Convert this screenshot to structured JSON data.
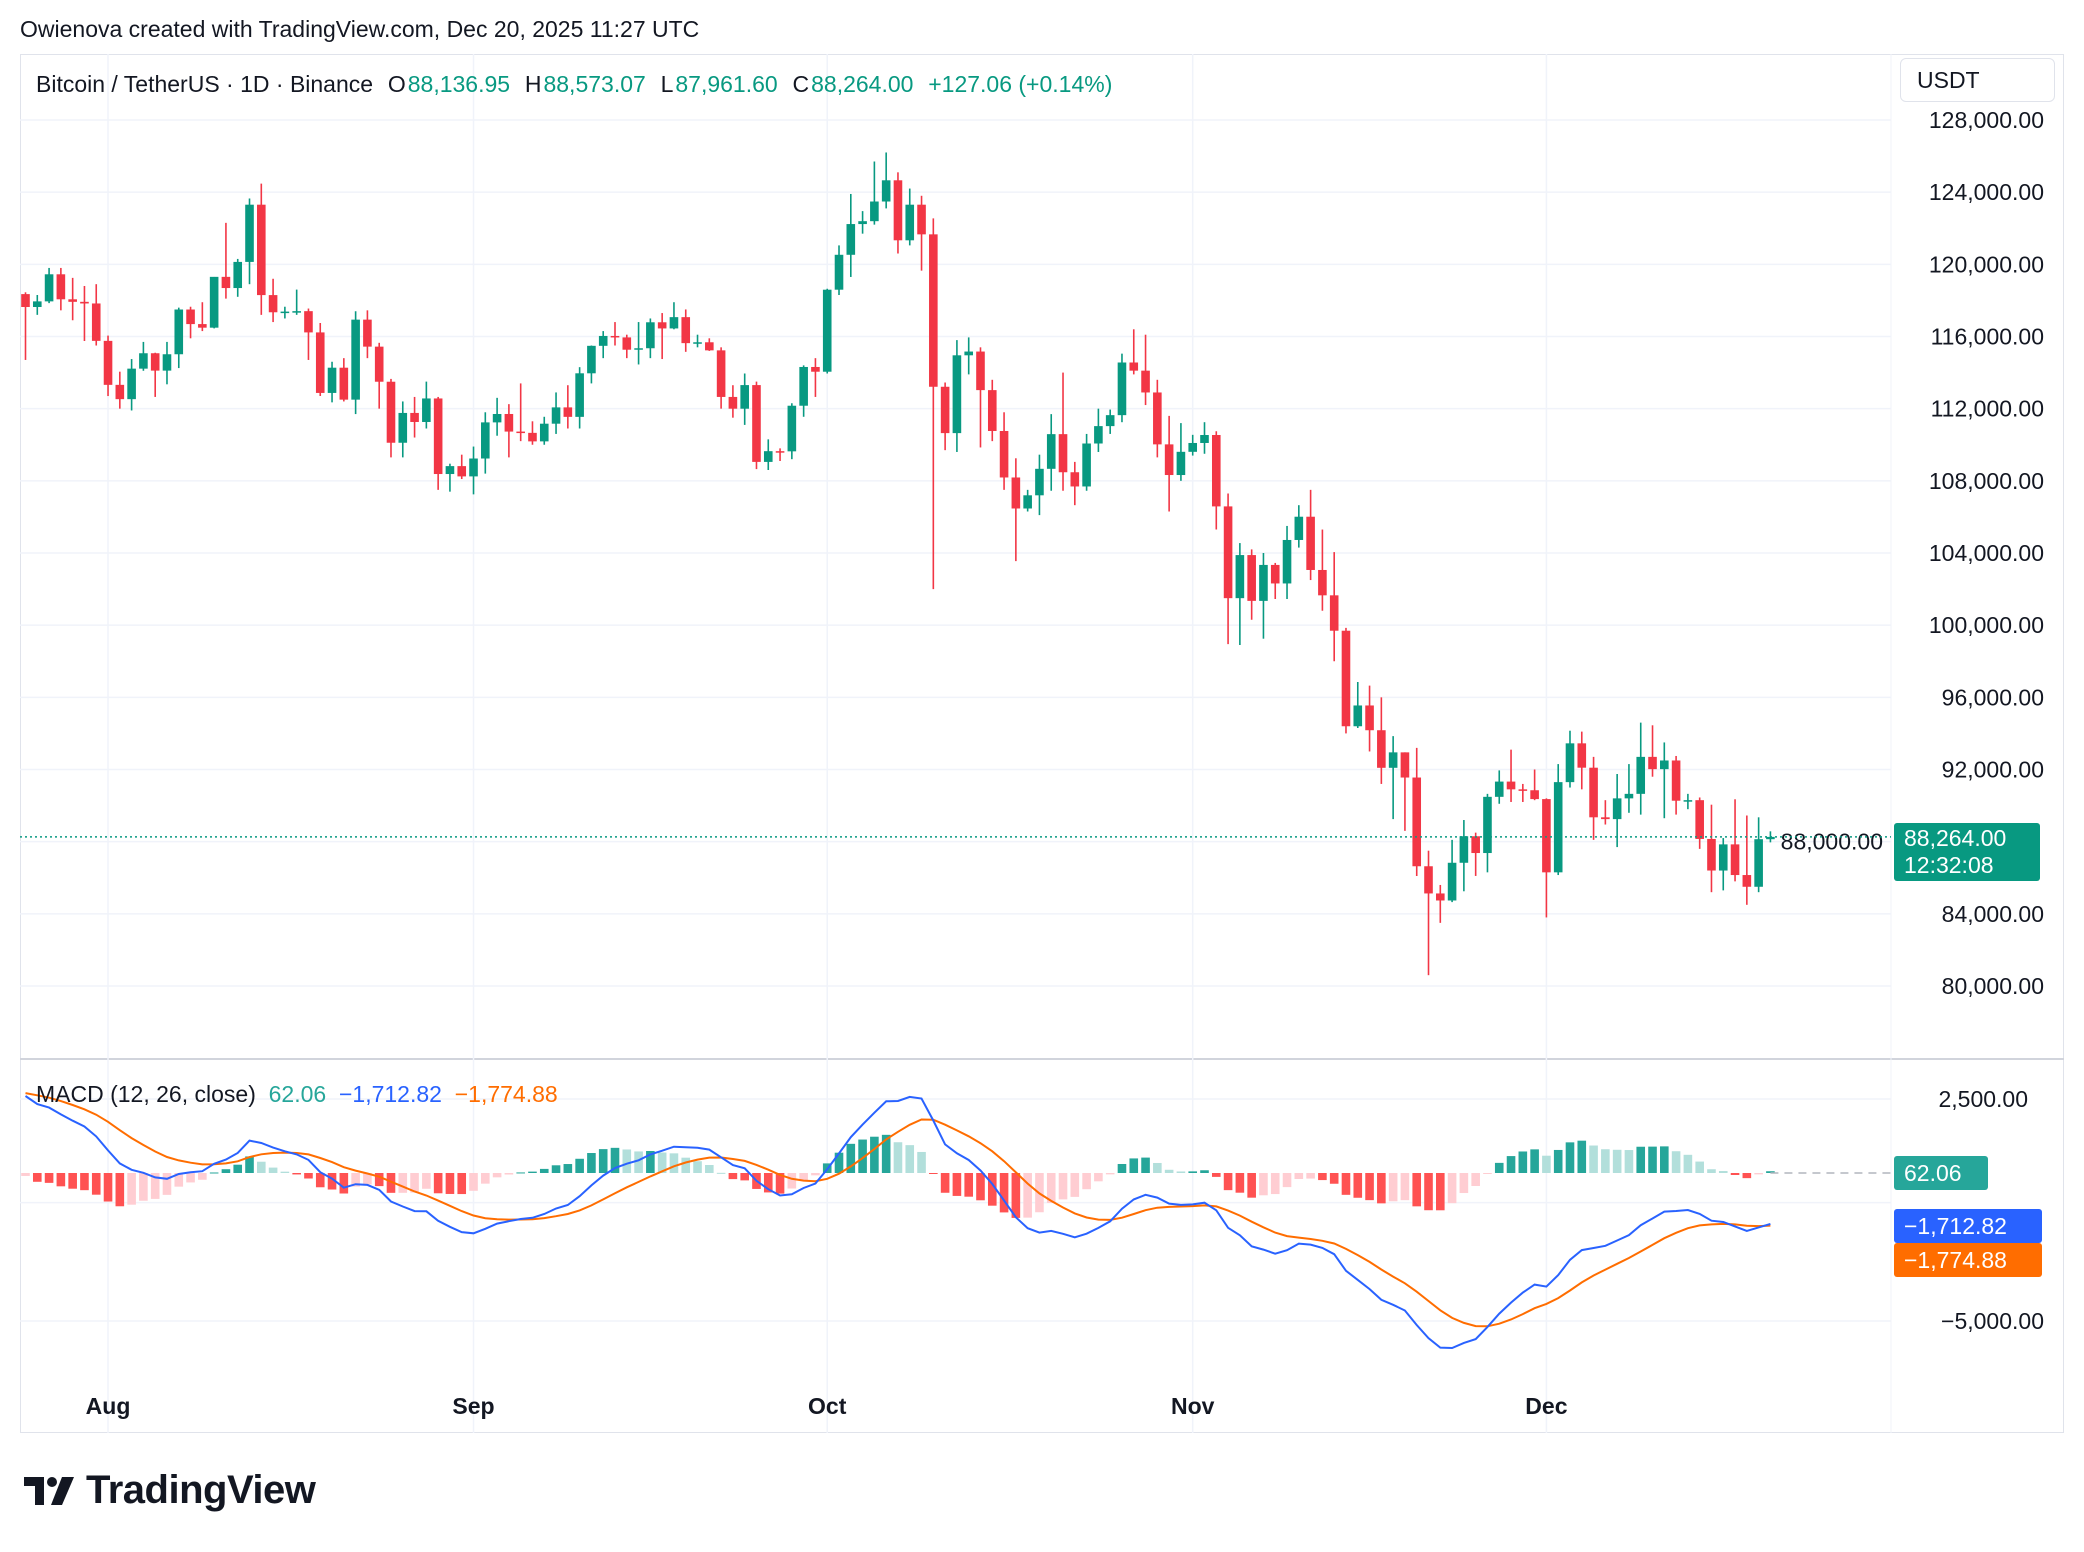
{
  "credit": "Owienova created with TradingView.com, Dec 20, 2025 11:27 UTC",
  "legend": {
    "symbol": "Bitcoin / TetherUS · 1D · Binance",
    "o_label": "O",
    "o_value": "88,136.95",
    "h_label": "H",
    "h_value": "88,573.07",
    "l_label": "L",
    "l_value": "87,961.60",
    "c_label": "C",
    "c_value": "88,264.00",
    "change": "+127.06 (+0.14%)"
  },
  "currency_button": "USDT",
  "last_price": {
    "value": "88,264.00",
    "countdown": "12:32:08"
  },
  "macd_legend": {
    "title": "MACD (12, 26, close)",
    "hist": "62.06",
    "macd": "−1,712.82",
    "signal": "−1,774.88"
  },
  "macd_badges": {
    "hist": "62.06",
    "macd": "−1,712.82",
    "signal": "−1,774.88"
  },
  "logo_text": "TradingView",
  "colors": {
    "up": "#089981",
    "down": "#f23645",
    "macd": "#2962ff",
    "signal": "#ff6d00",
    "hist_up_strong": "#26a69a",
    "hist_up_weak": "#b2dfdb",
    "hist_down_strong": "#ff5252",
    "hist_down_weak": "#ffcdd2"
  },
  "chart_data": [
    {
      "type": "candlestick",
      "title": "Bitcoin / TetherUS · 1D · Binance",
      "ylim": [
        76000,
        130000
      ],
      "y_ticks": [
        "128,000.00",
        "124,000.00",
        "120,000.00",
        "116,000.00",
        "112,000.00",
        "108,000.00",
        "104,000.00",
        "100,000.00",
        "96,000.00",
        "92,000.00",
        "88,000.00",
        "84,000.00",
        "80,000.00"
      ],
      "x_ticks": [
        "Aug",
        "Sep",
        "Oct",
        "Nov",
        "Dec"
      ],
      "grid": true,
      "candle_fields": [
        "date",
        "open",
        "high",
        "low",
        "close"
      ],
      "candles": [
        [
          "2025-07-25",
          118350,
          118450,
          114700,
          117635
        ],
        [
          "2025-07-26",
          117635,
          118300,
          117200,
          117947
        ],
        [
          "2025-07-27",
          117947,
          119800,
          117850,
          119448
        ],
        [
          "2025-07-28",
          119448,
          119800,
          117450,
          118062
        ],
        [
          "2025-07-29",
          118062,
          119250,
          116900,
          117922
        ],
        [
          "2025-07-30",
          117922,
          118800,
          115750,
          117831
        ],
        [
          "2025-07-31",
          117831,
          118900,
          115500,
          115758
        ],
        [
          "2025-08-01",
          115758,
          116050,
          112700,
          113320
        ],
        [
          "2025-08-02",
          113320,
          114050,
          112000,
          112527
        ],
        [
          "2025-08-03",
          112527,
          114750,
          111900,
          114218
        ],
        [
          "2025-08-04",
          114218,
          115700,
          114100,
          115072
        ],
        [
          "2025-08-05",
          115072,
          115100,
          112650,
          114109
        ],
        [
          "2025-08-06",
          114109,
          115700,
          113350,
          115016
        ],
        [
          "2025-08-07",
          115016,
          117600,
          114250,
          117496
        ],
        [
          "2025-08-08",
          117496,
          117650,
          115900,
          116688
        ],
        [
          "2025-08-09",
          116688,
          117900,
          116300,
          116489
        ],
        [
          "2025-08-10",
          116489,
          119300,
          116450,
          119306
        ],
        [
          "2025-08-11",
          119306,
          122300,
          118100,
          118686
        ],
        [
          "2025-08-12",
          118686,
          120300,
          118200,
          120134
        ],
        [
          "2025-08-13",
          120134,
          123650,
          118900,
          123306
        ],
        [
          "2025-08-14",
          123306,
          124470,
          117200,
          118295
        ],
        [
          "2025-08-15",
          118295,
          119200,
          116800,
          117343
        ],
        [
          "2025-08-16",
          117343,
          117650,
          117000,
          117380
        ],
        [
          "2025-08-17",
          117380,
          118600,
          117200,
          117405
        ],
        [
          "2025-08-18",
          117405,
          117550,
          114700,
          116227
        ],
        [
          "2025-08-19",
          116227,
          116750,
          112700,
          112872
        ],
        [
          "2025-08-20",
          112872,
          114600,
          112350,
          114271
        ],
        [
          "2025-08-21",
          114271,
          114800,
          112400,
          112500
        ],
        [
          "2025-08-22",
          112500,
          117400,
          111700,
          116935
        ],
        [
          "2025-08-23",
          116935,
          117450,
          114800,
          115438
        ],
        [
          "2025-08-24",
          115438,
          115650,
          112000,
          113493
        ],
        [
          "2025-08-25",
          113493,
          113650,
          109300,
          110111
        ],
        [
          "2025-08-26",
          110111,
          112400,
          109300,
          111763
        ],
        [
          "2025-08-27",
          111763,
          112650,
          110400,
          111262
        ],
        [
          "2025-08-28",
          111262,
          113500,
          110900,
          112566
        ],
        [
          "2025-08-29",
          112566,
          112650,
          107500,
          108377
        ],
        [
          "2025-08-30",
          108377,
          108950,
          107400,
          108816
        ],
        [
          "2025-08-31",
          108816,
          109450,
          108100,
          108246
        ],
        [
          "2025-09-01",
          108246,
          109900,
          107250,
          109237
        ],
        [
          "2025-09-02",
          109237,
          111800,
          108400,
          111240
        ],
        [
          "2025-09-03",
          111240,
          112600,
          110500,
          111705
        ],
        [
          "2025-09-04",
          111705,
          112250,
          109300,
          110730
        ],
        [
          "2025-09-05",
          110730,
          113400,
          110200,
          110659
        ],
        [
          "2025-09-06",
          110659,
          111300,
          110000,
          110187
        ],
        [
          "2025-09-07",
          110187,
          111550,
          110000,
          111167
        ],
        [
          "2025-09-08",
          111167,
          112900,
          110600,
          112071
        ],
        [
          "2025-09-09",
          112071,
          113300,
          110900,
          111546
        ],
        [
          "2025-09-10",
          111546,
          114300,
          110900,
          113960
        ],
        [
          "2025-09-11",
          113960,
          115500,
          113400,
          115483
        ],
        [
          "2025-09-12",
          115483,
          116300,
          114800,
          116030
        ],
        [
          "2025-09-13",
          116030,
          116800,
          115500,
          115950
        ],
        [
          "2025-09-14",
          115950,
          116100,
          114800,
          115268
        ],
        [
          "2025-09-15",
          115268,
          116800,
          114450,
          115349
        ],
        [
          "2025-09-16",
          115349,
          117000,
          114800,
          116788
        ],
        [
          "2025-09-17",
          116788,
          117300,
          114750,
          116447
        ],
        [
          "2025-09-18",
          116447,
          117900,
          116400,
          117073
        ],
        [
          "2025-09-19",
          117073,
          117500,
          115150,
          115632
        ],
        [
          "2025-09-20",
          115632,
          116100,
          115400,
          115680
        ],
        [
          "2025-09-21",
          115680,
          115900,
          115200,
          115232
        ],
        [
          "2025-09-22",
          115232,
          115400,
          112000,
          112650
        ],
        [
          "2025-09-23",
          112650,
          113300,
          111500,
          111998
        ],
        [
          "2025-09-24",
          111998,
          113950,
          111100,
          113307
        ],
        [
          "2025-09-25",
          113307,
          113500,
          108650,
          109049
        ],
        [
          "2025-09-26",
          109049,
          110300,
          108600,
          109644
        ],
        [
          "2025-09-27",
          109644,
          109800,
          109100,
          109635
        ],
        [
          "2025-09-28",
          109635,
          112300,
          109200,
          112163
        ],
        [
          "2025-09-29",
          112163,
          114400,
          111550,
          114311
        ],
        [
          "2025-09-30",
          114311,
          114800,
          112650,
          114048
        ],
        [
          "2025-10-01",
          114048,
          118650,
          113950,
          118594
        ],
        [
          "2025-10-02",
          118594,
          121050,
          118300,
          120529
        ],
        [
          "2025-10-03",
          120529,
          123900,
          119300,
          122232
        ],
        [
          "2025-10-04",
          122232,
          122950,
          121700,
          122392
        ],
        [
          "2025-10-05",
          122392,
          125700,
          122200,
          123482
        ],
        [
          "2025-10-06",
          123482,
          126200,
          123100,
          124658
        ],
        [
          "2025-10-07",
          124658,
          125100,
          120600,
          121332
        ],
        [
          "2025-10-08",
          121332,
          124200,
          121050,
          123306
        ],
        [
          "2025-10-09",
          123306,
          123800,
          119650,
          121662
        ],
        [
          "2025-10-10",
          121662,
          122550,
          102000,
          113214
        ],
        [
          "2025-10-11",
          113214,
          113450,
          109700,
          110645
        ],
        [
          "2025-10-12",
          110645,
          115800,
          109600,
          114958
        ],
        [
          "2025-10-13",
          114958,
          115950,
          113900,
          115166
        ],
        [
          "2025-10-14",
          115166,
          115400,
          109850,
          113028
        ],
        [
          "2025-10-15",
          113028,
          113600,
          110200,
          110763
        ],
        [
          "2025-10-16",
          110763,
          111800,
          107500,
          108186
        ],
        [
          "2025-10-17",
          108186,
          109250,
          103550,
          106467
        ],
        [
          "2025-10-18",
          106467,
          107500,
          106300,
          107198
        ],
        [
          "2025-10-19",
          107198,
          109450,
          106100,
          108666
        ],
        [
          "2025-10-20",
          108666,
          111700,
          107450,
          110588
        ],
        [
          "2025-10-21",
          110588,
          114000,
          107450,
          108476
        ],
        [
          "2025-10-22",
          108476,
          109050,
          106650,
          107688
        ],
        [
          "2025-10-23",
          107688,
          110600,
          107450,
          110069
        ],
        [
          "2025-10-24",
          110069,
          112000,
          109600,
          111033
        ],
        [
          "2025-10-25",
          111033,
          111950,
          110600,
          111641
        ],
        [
          "2025-10-26",
          111641,
          115050,
          111250,
          114559
        ],
        [
          "2025-10-27",
          114559,
          116400,
          113900,
          114107
        ],
        [
          "2025-10-28",
          114107,
          116100,
          112200,
          112898
        ],
        [
          "2025-10-29",
          112898,
          113600,
          109300,
          110021
        ],
        [
          "2025-10-30",
          110021,
          111600,
          106300,
          108322
        ],
        [
          "2025-10-31",
          108322,
          111200,
          108000,
          109608
        ],
        [
          "2025-11-01",
          109608,
          110550,
          109400,
          110098
        ],
        [
          "2025-11-02",
          110098,
          111250,
          109500,
          110540
        ],
        [
          "2025-11-03",
          110540,
          110750,
          105300,
          106583
        ],
        [
          "2025-11-04",
          106583,
          107300,
          98950,
          101497
        ],
        [
          "2025-11-05",
          101497,
          104550,
          98900,
          103885
        ],
        [
          "2025-11-06",
          103885,
          104200,
          100300,
          101346
        ],
        [
          "2025-11-07",
          101346,
          104000,
          99250,
          103339
        ],
        [
          "2025-11-08",
          103339,
          103450,
          101450,
          102312
        ],
        [
          "2025-11-09",
          102312,
          105500,
          101450,
          104722
        ],
        [
          "2025-11-10",
          104722,
          106650,
          104300,
          106011
        ],
        [
          "2025-11-11",
          106011,
          107500,
          102500,
          103059
        ],
        [
          "2025-11-12",
          103059,
          105300,
          100800,
          101654
        ],
        [
          "2025-11-13",
          101654,
          104050,
          98000,
          99692
        ],
        [
          "2025-11-14",
          99692,
          99850,
          94000,
          94397
        ],
        [
          "2025-11-15",
          94397,
          96850,
          94300,
          95549
        ],
        [
          "2025-11-16",
          95549,
          96650,
          93000,
          94177
        ],
        [
          "2025-11-17",
          94177,
          96000,
          91200,
          92094
        ],
        [
          "2025-11-18",
          92094,
          93850,
          89250,
          92950
        ],
        [
          "2025-11-19",
          92950,
          92950,
          88600,
          91555
        ],
        [
          "2025-11-20",
          91555,
          93200,
          86100,
          86637
        ],
        [
          "2025-11-21",
          86637,
          87500,
          80600,
          85130
        ],
        [
          "2025-11-22",
          85130,
          85600,
          83500,
          84740
        ],
        [
          "2025-11-23",
          84740,
          88100,
          84650,
          86830
        ],
        [
          "2025-11-24",
          86830,
          89200,
          85250,
          88300
        ],
        [
          "2025-11-25",
          88300,
          88500,
          86100,
          87370
        ],
        [
          "2025-11-26",
          87370,
          90650,
          86300,
          90485
        ],
        [
          "2025-11-27",
          90485,
          91950,
          90100,
          91330
        ],
        [
          "2025-11-28",
          91330,
          93100,
          90200,
          90900
        ],
        [
          "2025-11-29",
          90900,
          91200,
          90200,
          90850
        ],
        [
          "2025-11-30",
          90850,
          92000,
          90300,
          90360
        ],
        [
          "2025-12-01",
          90360,
          90400,
          83800,
          86300
        ],
        [
          "2025-12-02",
          86300,
          92300,
          86150,
          91300
        ],
        [
          "2025-12-03",
          91300,
          94150,
          91000,
          93450
        ],
        [
          "2025-12-04",
          93450,
          94100,
          90900,
          92100
        ],
        [
          "2025-12-05",
          92100,
          92700,
          88100,
          89350
        ],
        [
          "2025-12-06",
          89350,
          90300,
          88950,
          89250
        ],
        [
          "2025-12-07",
          89250,
          91750,
          87700,
          90400
        ],
        [
          "2025-12-08",
          90400,
          92300,
          89600,
          90650
        ],
        [
          "2025-12-09",
          90650,
          94600,
          89500,
          92700
        ],
        [
          "2025-12-10",
          92700,
          94450,
          91600,
          92020
        ],
        [
          "2025-12-11",
          92020,
          93500,
          89300,
          92500
        ],
        [
          "2025-12-12",
          92500,
          92750,
          89500,
          90270
        ],
        [
          "2025-12-13",
          90270,
          90650,
          89800,
          90300
        ],
        [
          "2025-12-14",
          90300,
          90450,
          87600,
          88150
        ],
        [
          "2025-12-15",
          88150,
          90050,
          85200,
          86400
        ],
        [
          "2025-12-16",
          86400,
          88200,
          85300,
          87850
        ],
        [
          "2025-12-17",
          87850,
          90350,
          85800,
          86150
        ],
        [
          "2025-12-18",
          86150,
          89450,
          84500,
          85500
        ],
        [
          "2025-12-19",
          85500,
          89350,
          85200,
          88137
        ],
        [
          "2025-12-20",
          88136.95,
          88573.07,
          87961.6,
          88264.0
        ]
      ],
      "last_price": 88264.0
    },
    {
      "type": "line+bar",
      "title": "MACD (12, 26, close)",
      "y_ticks": [
        "2,500.00",
        "−5,000.00"
      ],
      "ylim": [
        -6500,
        4000
      ],
      "series": [
        {
          "name": "Histogram",
          "last": 62.06
        },
        {
          "name": "MACD",
          "last": -1712.82
        },
        {
          "name": "Signal",
          "last": -1774.88
        }
      ]
    }
  ]
}
